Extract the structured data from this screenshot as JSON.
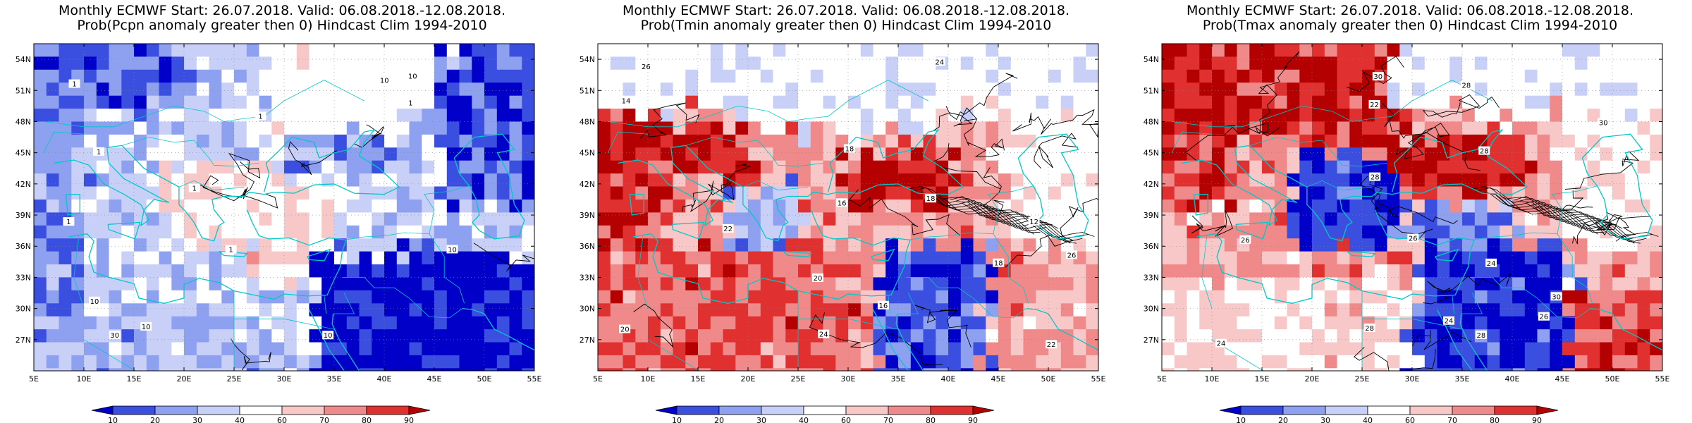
{
  "panels": [
    {
      "id": "pcpn",
      "title_line1": "Monthly ECMWF Start: 26.07.2018. Valid: 06.08.2018.-12.08.2018.",
      "title_line2": "Prob(Pcpn anomaly greater then 0) Hindcast Clim 1994-2010",
      "contour_labels": [
        "10",
        "10",
        "10",
        "10",
        "30",
        "1",
        "1",
        "1",
        "1",
        "1",
        "1",
        "10",
        "10",
        "1"
      ]
    },
    {
      "id": "tmin",
      "title_line1": "Monthly ECMWF Start: 26.07.2018. Valid: 06.08.2018.-12.08.2018.",
      "title_line2": "Prob(Tmin anomaly greater then 0) Hindcast Clim 1994-2010",
      "contour_labels": [
        "18",
        "16",
        "16",
        "18",
        "14",
        "12",
        "20",
        "22",
        "24",
        "26",
        "22",
        "24",
        "26",
        "20",
        "18"
      ]
    },
    {
      "id": "tmax",
      "title_line1": "Monthly ECMWF Start: 26.07.2018. Valid: 06.08.2018.-12.08.2018.",
      "title_line2": "Prob(Tmax anomaly greater then 0) Hindcast Clim 1994-2010",
      "contour_labels": [
        "24",
        "26",
        "28",
        "30",
        "28",
        "26",
        "22",
        "24",
        "26",
        "28",
        "30",
        "28",
        "24",
        "28",
        "30"
      ]
    }
  ],
  "lat_labels": [
    "54N",
    "51N",
    "48N",
    "45N",
    "42N",
    "39N",
    "36N",
    "33N",
    "30N",
    "27N"
  ],
  "lon_labels": [
    "5E",
    "10E",
    "15E",
    "20E",
    "25E",
    "30E",
    "35E",
    "40E",
    "45E",
    "50E",
    "55E"
  ],
  "colorbar_labels": [
    "10",
    "20",
    "30",
    "40",
    "60",
    "70",
    "80",
    "90"
  ],
  "colors": {
    "blue_dark": "#0000c8",
    "blue_mid": "#3a4ee0",
    "blue_light": "#8ea0f0",
    "blue_pale": "#c8d0f8",
    "white": "#ffffff",
    "red_pale": "#f8c8c8",
    "red_light": "#f08a8a",
    "red_mid": "#e03030",
    "red_dark": "#b40000",
    "coast": "#00c8c8"
  }
}
